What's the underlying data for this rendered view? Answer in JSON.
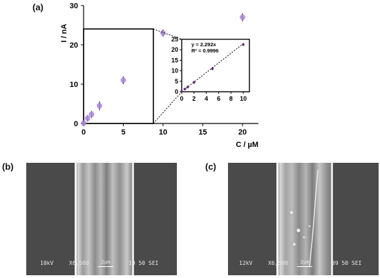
{
  "panels": {
    "a": "(a)",
    "b": "(b)",
    "c": "(c)"
  },
  "chart_data": [
    {
      "type": "scatter",
      "title": "",
      "xlabel": "C / µM",
      "ylabel": "I / nA",
      "xlim": [
        0,
        22
      ],
      "ylim": [
        0,
        30
      ],
      "xticks": [
        "0",
        "5",
        "10",
        "15",
        "20"
      ],
      "yticks": [
        "0",
        "10",
        "20",
        "30"
      ],
      "grid": false,
      "marker_color": "#a98ad8",
      "error_color": "#5a2a7a",
      "series": [
        {
          "x": [
            0,
            0.5,
            1,
            2,
            5,
            10,
            20
          ],
          "y": [
            0.1,
            1.3,
            2.3,
            4.5,
            11.0,
            23.0,
            27.0
          ],
          "err": [
            0.2,
            0.8,
            0.9,
            1.1,
            1.0,
            0.9,
            1.0
          ]
        }
      ]
    },
    {
      "type": "scatter",
      "title": "",
      "xlim": [
        0,
        11
      ],
      "ylim": [
        0,
        25
      ],
      "xticks": [
        "0",
        "2",
        "4",
        "6",
        "8",
        "10"
      ],
      "yticks": [
        "0",
        "5",
        "10",
        "15",
        "20",
        "25"
      ],
      "grid": false,
      "annotation_equation": "y = 2.292x",
      "annotation_r2": "R² = 0.9996",
      "fit_slope": 2.292,
      "series": [
        {
          "x": [
            0,
            0.5,
            1,
            2,
            5,
            10
          ],
          "y": [
            0.1,
            1.3,
            2.3,
            4.5,
            11.0,
            22.5
          ],
          "err": [
            0.2,
            0.5,
            0.6,
            0.7,
            0.8,
            0.6
          ]
        }
      ]
    }
  ],
  "sem_b": {
    "voltage": "10kV",
    "magnification": "X6,500",
    "scale": "2µm",
    "code": "10 50 SEI"
  },
  "sem_c": {
    "voltage": "12kV",
    "magnification": "X6,500",
    "scale": "2µm",
    "code": "09 50 SEI"
  }
}
